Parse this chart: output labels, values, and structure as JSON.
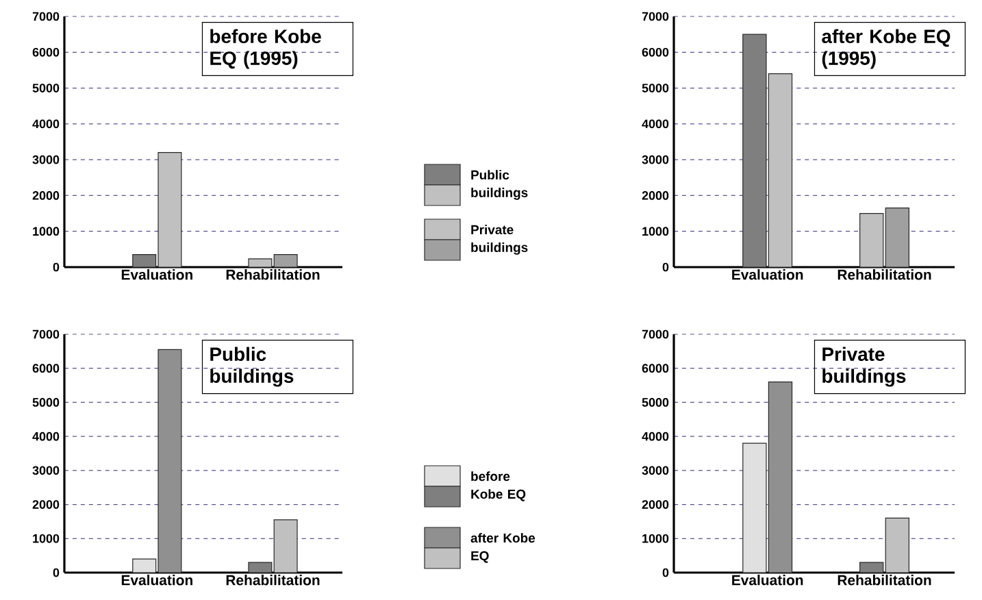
{
  "chart_data": [
    {
      "type": "bar",
      "title": "before Kobe EQ (1995)",
      "categories": [
        "Evaluation",
        "Rehabilitation"
      ],
      "ylim": [
        0,
        7000
      ],
      "yticks": [
        0,
        1000,
        2000,
        3000,
        4000,
        5000,
        6000,
        7000
      ],
      "grid": "y",
      "legend": "right",
      "series": [
        {
          "name": "Public buildings",
          "values": [
            350,
            230
          ],
          "colors": [
            "#7f7f7f",
            "#c0c0c0"
          ]
        },
        {
          "name": "Private buildings",
          "values": [
            3200,
            350
          ],
          "colors": [
            "#c0c0c0",
            "#a0a0a0"
          ]
        }
      ]
    },
    {
      "type": "bar",
      "title": "after Kobe EQ (1995)",
      "categories": [
        "Evaluation",
        "Rehabilitation"
      ],
      "ylim": [
        0,
        7000
      ],
      "yticks": [
        0,
        1000,
        2000,
        3000,
        4000,
        5000,
        6000,
        7000
      ],
      "grid": "y",
      "series": [
        {
          "values": [
            6500,
            1500
          ],
          "colors": [
            "#7f7f7f",
            "#c0c0c0"
          ]
        },
        {
          "values": [
            5400,
            1650
          ],
          "colors": [
            "#c0c0c0",
            "#a0a0a0"
          ]
        }
      ]
    },
    {
      "type": "bar",
      "title": "Public buildings",
      "categories": [
        "Evaluation",
        "Rehabilitation"
      ],
      "ylim": [
        0,
        7000
      ],
      "yticks": [
        0,
        1000,
        2000,
        3000,
        4000,
        5000,
        6000,
        7000
      ],
      "grid": "y",
      "legend": "right",
      "series": [
        {
          "name": "before Kobe EQ",
          "values": [
            400,
            300
          ],
          "colors": [
            "#e0e0e0",
            "#7f7f7f"
          ]
        },
        {
          "name": "after Kobe EQ",
          "values": [
            6550,
            1550
          ],
          "colors": [
            "#909090",
            "#c0c0c0"
          ]
        }
      ]
    },
    {
      "type": "bar",
      "title": "Private buildings",
      "categories": [
        "Evaluation",
        "Rehabilitation"
      ],
      "ylim": [
        0,
        7000
      ],
      "yticks": [
        0,
        1000,
        2000,
        3000,
        4000,
        5000,
        6000,
        7000
      ],
      "grid": "y",
      "series": [
        {
          "values": [
            3800,
            300
          ],
          "colors": [
            "#e0e0e0",
            "#7f7f7f"
          ]
        },
        {
          "values": [
            5600,
            1600
          ],
          "colors": [
            "#909090",
            "#c0c0c0"
          ]
        }
      ]
    }
  ]
}
